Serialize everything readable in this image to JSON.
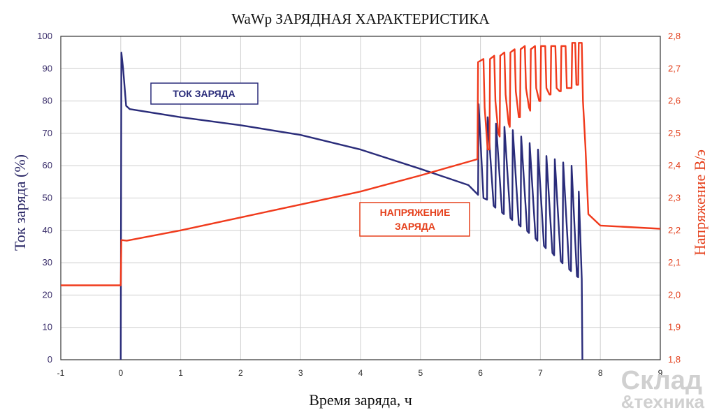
{
  "chart_data": {
    "type": "line",
    "title": "WaWp ЗАРЯДНАЯ ХАРАКТЕРИСТИКА",
    "xlabel": "Время заряда, ч",
    "ylabel_left": "Ток заряда (%)",
    "ylabel_right": "Напряжение В/э",
    "xlim": [
      -1,
      9
    ],
    "ylim_left": [
      0,
      100
    ],
    "ylim_right": [
      1.8,
      2.8
    ],
    "x_ticks": [
      "-1",
      "0",
      "1",
      "2",
      "3",
      "4",
      "5",
      "6",
      "7",
      "8",
      "9"
    ],
    "y_left_ticks": [
      "0",
      "10",
      "20",
      "30",
      "40",
      "50",
      "60",
      "70",
      "80",
      "90",
      "100"
    ],
    "y_right_ticks": [
      "1,8",
      "1,9",
      "2,0",
      "2,1",
      "2,2",
      "2,3",
      "2,4",
      "2,5",
      "2,6",
      "2,7",
      "2,8"
    ],
    "grid": true,
    "annotations": {
      "current": "ТОК ЗАРЯДА",
      "voltage_line1": "НАПРЯЖЕНИЕ",
      "voltage_line2": "ЗАРЯДА"
    },
    "colors": {
      "current": "#2a2c7a",
      "voltage": "#f03a1c",
      "grid": "#cfcfcf"
    },
    "series": [
      {
        "axis": "left",
        "color": "#2a2c7a",
        "points": [
          [
            0,
            0
          ],
          [
            0.01,
            95
          ],
          [
            0.04,
            90
          ],
          [
            0.09,
            78.5
          ],
          [
            0.15,
            77.5
          ],
          [
            1,
            75
          ],
          [
            2,
            72.5
          ],
          [
            3,
            69.5
          ],
          [
            4,
            65
          ],
          [
            5,
            59
          ],
          [
            5.8,
            54
          ],
          [
            5.96,
            51
          ],
          [
            5.97,
            79
          ],
          [
            6.05,
            50
          ],
          [
            6.11,
            49.5
          ],
          [
            6.12,
            75
          ],
          [
            6.22,
            47.6
          ],
          [
            6.25,
            47
          ],
          [
            6.26,
            73
          ],
          [
            6.36,
            45.5
          ],
          [
            6.39,
            45
          ],
          [
            6.4,
            72
          ],
          [
            6.5,
            43.8
          ],
          [
            6.53,
            43.2
          ],
          [
            6.54,
            71
          ],
          [
            6.64,
            41.8
          ],
          [
            6.67,
            41.2
          ],
          [
            6.68,
            69
          ],
          [
            6.78,
            39.8
          ],
          [
            6.81,
            39.2
          ],
          [
            6.82,
            67
          ],
          [
            6.92,
            37.5
          ],
          [
            6.95,
            36.8
          ],
          [
            6.96,
            65
          ],
          [
            7.06,
            35.2
          ],
          [
            7.09,
            34.5
          ],
          [
            7.1,
            63
          ],
          [
            7.2,
            33
          ],
          [
            7.23,
            32.3
          ],
          [
            7.24,
            62
          ],
          [
            7.34,
            30.5
          ],
          [
            7.37,
            29.8
          ],
          [
            7.38,
            61
          ],
          [
            7.48,
            28
          ],
          [
            7.51,
            27.4
          ],
          [
            7.52,
            60
          ],
          [
            7.61,
            25.8
          ],
          [
            7.63,
            25.5
          ],
          [
            7.64,
            52
          ],
          [
            7.69,
            25
          ],
          [
            7.7,
            0
          ]
        ]
      },
      {
        "axis": "right",
        "color": "#f03a1c",
        "points": [
          [
            -1,
            2.03
          ],
          [
            0,
            2.03
          ],
          [
            0.01,
            2.17
          ],
          [
            0.1,
            2.168
          ],
          [
            1,
            2.2
          ],
          [
            2,
            2.24
          ],
          [
            3,
            2.28
          ],
          [
            4,
            2.32
          ],
          [
            5,
            2.37
          ],
          [
            5.95,
            2.42
          ],
          [
            5.96,
            2.72
          ],
          [
            6.05,
            2.73
          ],
          [
            6.07,
            2.58
          ],
          [
            6.12,
            2.45
          ],
          [
            6.15,
            2.45
          ],
          [
            6.16,
            2.73
          ],
          [
            6.23,
            2.74
          ],
          [
            6.25,
            2.6
          ],
          [
            6.3,
            2.5
          ],
          [
            6.32,
            2.49
          ],
          [
            6.33,
            2.74
          ],
          [
            6.4,
            2.75
          ],
          [
            6.42,
            2.62
          ],
          [
            6.47,
            2.53
          ],
          [
            6.49,
            2.52
          ],
          [
            6.5,
            2.75
          ],
          [
            6.57,
            2.76
          ],
          [
            6.59,
            2.63
          ],
          [
            6.64,
            2.55
          ],
          [
            6.66,
            2.55
          ],
          [
            6.67,
            2.76
          ],
          [
            6.74,
            2.77
          ],
          [
            6.76,
            2.64
          ],
          [
            6.81,
            2.58
          ],
          [
            6.83,
            2.57
          ],
          [
            6.84,
            2.76
          ],
          [
            6.91,
            2.77
          ],
          [
            6.93,
            2.64
          ],
          [
            6.98,
            2.6
          ],
          [
            7.0,
            2.6
          ],
          [
            7.01,
            2.77
          ],
          [
            7.08,
            2.77
          ],
          [
            7.1,
            2.64
          ],
          [
            7.15,
            2.62
          ],
          [
            7.17,
            2.62
          ],
          [
            7.18,
            2.77
          ],
          [
            7.25,
            2.77
          ],
          [
            7.27,
            2.64
          ],
          [
            7.32,
            2.63
          ],
          [
            7.34,
            2.63
          ],
          [
            7.35,
            2.77
          ],
          [
            7.42,
            2.77
          ],
          [
            7.44,
            2.64
          ],
          [
            7.5,
            2.64
          ],
          [
            7.52,
            2.64
          ],
          [
            7.53,
            2.78
          ],
          [
            7.58,
            2.78
          ],
          [
            7.6,
            2.65
          ],
          [
            7.63,
            2.65
          ],
          [
            7.64,
            2.78
          ],
          [
            7.69,
            2.78
          ],
          [
            7.71,
            2.6
          ],
          [
            7.75,
            2.46
          ],
          [
            7.8,
            2.25
          ],
          [
            8,
            2.215
          ],
          [
            9,
            2.205
          ]
        ]
      }
    ]
  },
  "watermark": {
    "line1": "Склад",
    "line2": "&техника"
  }
}
